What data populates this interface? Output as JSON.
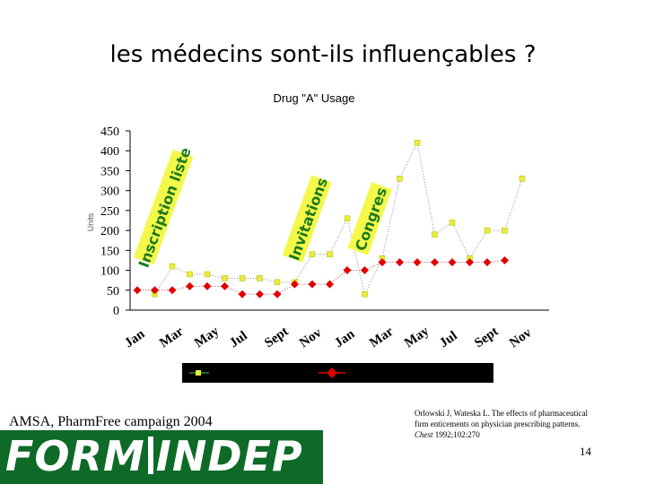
{
  "slide_title": "les médecins sont-ils influençables ?",
  "source": "AMSA, PharmFree campaign 2004",
  "reference": {
    "line1": "Orlowski J, Wateska L. The effects of pharmaceutical",
    "line2": "firm enticements on physician prescribing patterns.",
    "journal": "Chest",
    "citation": " 1992;102:270"
  },
  "page_number": "14",
  "logo": {
    "left": "FORM",
    "right": "INDEP"
  },
  "colors": {
    "series1": "#e8ec3a",
    "series2": "#e00000",
    "logo_bg": "#0d6a27"
  },
  "chart_data": {
    "type": "line",
    "title": "Drug \"A\" Usage",
    "ylabel": "Units",
    "ylim": [
      0,
      450
    ],
    "y_ticks": [
      "0",
      "50",
      "100",
      "150",
      "200",
      "250",
      "300",
      "350",
      "400",
      "450"
    ],
    "tick_labels": [
      "Jan",
      "Mar",
      "May",
      "Jul",
      "Sept",
      "Nov",
      "Jan",
      "Mar",
      "May",
      "Jul",
      "Sept",
      "Nov"
    ],
    "series": [
      {
        "values": [
          null,
          40,
          110,
          90,
          90,
          80,
          80,
          80,
          70,
          70,
          140,
          140,
          230,
          40,
          130,
          330,
          420,
          190,
          220,
          130,
          200,
          200,
          330
        ]
      },
      {
        "values": [
          50,
          50,
          50,
          60,
          60,
          60,
          40,
          40,
          40,
          65,
          65,
          65,
          100,
          100,
          120,
          120,
          120,
          120,
          120,
          120,
          120,
          125,
          null
        ]
      }
    ],
    "annotations": [
      {
        "text": "Inscription liste"
      },
      {
        "text": "Invitations"
      },
      {
        "text": "Congres"
      }
    ]
  }
}
